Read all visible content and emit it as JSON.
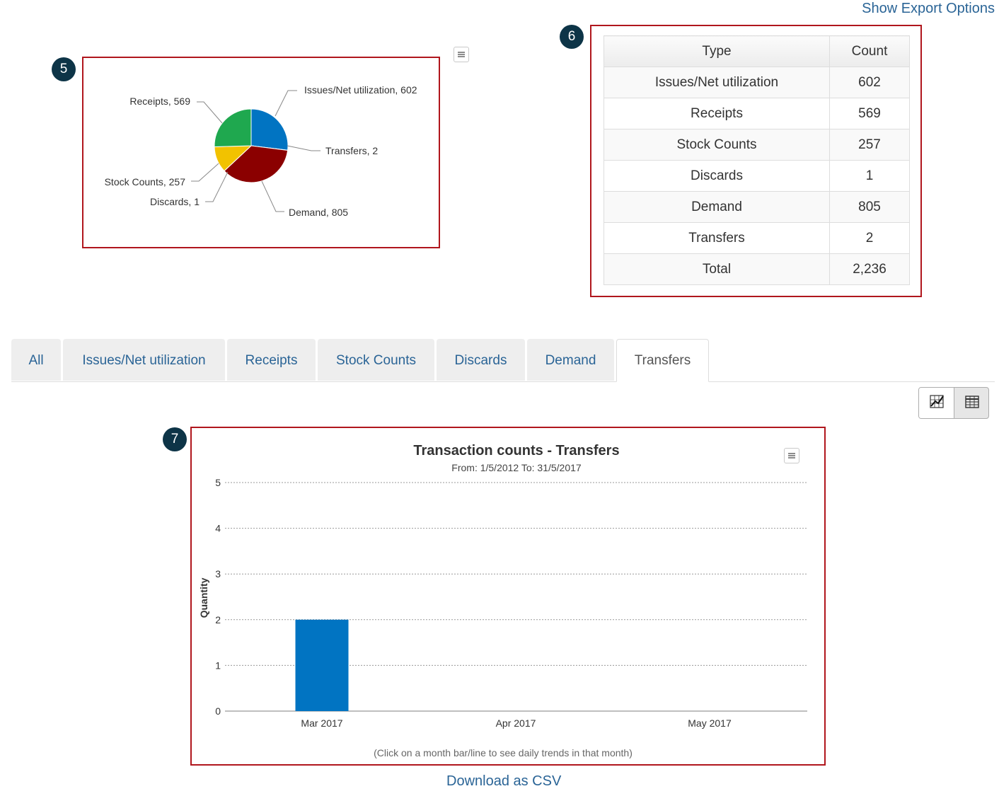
{
  "export_link": "Show Export Options",
  "badges": {
    "pie": "5",
    "table": "6",
    "bar": "7"
  },
  "pie": {
    "icons": {
      "menu": "hamburger-menu-icon"
    },
    "labels": {
      "issues": "Issues/Net utilization, 602",
      "receipts": "Receipts, 569",
      "transfers": "Transfers, 2",
      "stock_counts": "Stock Counts, 257",
      "discards": "Discards, 1",
      "demand": "Demand, 805"
    }
  },
  "summary_table": {
    "headers": [
      "Type",
      "Count"
    ],
    "rows": [
      [
        "Issues/Net utilization",
        "602"
      ],
      [
        "Receipts",
        "569"
      ],
      [
        "Stock Counts",
        "257"
      ],
      [
        "Discards",
        "1"
      ],
      [
        "Demand",
        "805"
      ],
      [
        "Transfers",
        "2"
      ],
      [
        "Total",
        "2,236"
      ]
    ]
  },
  "tabs": [
    "All",
    "Issues/Net utilization",
    "Receipts",
    "Stock Counts",
    "Discards",
    "Demand",
    "Transfers"
  ],
  "active_tab": "Transfers",
  "view_toggle": {
    "chart_icon": "chart-view-icon",
    "table_icon": "table-view-icon"
  },
  "bar_chart": {
    "subtitle": "From: 1/5/2012 To: 31/5/2017",
    "footnote": "(Click on a month bar/line to see daily trends in that month)"
  },
  "download_link": "Download as CSV",
  "colors": {
    "issues": "#0174c2",
    "demand": "#8b0000",
    "discards": "#ffd400",
    "stock_counts": "#f2c200",
    "receipts": "#1fa84f",
    "transfers": "#7a1fa0",
    "bar": "#0174c2"
  },
  "chart_data": [
    {
      "type": "pie",
      "categories": [
        "Issues/Net utilization",
        "Transfers",
        "Demand",
        "Discards",
        "Stock Counts",
        "Receipts"
      ],
      "values": [
        602,
        2,
        805,
        1,
        257,
        569
      ]
    },
    {
      "type": "bar",
      "title": "Transaction counts - Transfers",
      "subtitle": "From: 1/5/2012 To: 31/5/2017",
      "categories": [
        "Mar 2017",
        "Apr 2017",
        "May 2017"
      ],
      "values": [
        2,
        0,
        0
      ],
      "ylabel": "Quantity",
      "xlabel": "",
      "ylim": [
        0,
        5
      ],
      "yticks": [
        0,
        1,
        2,
        3,
        4,
        5
      ],
      "grid": true
    }
  ]
}
